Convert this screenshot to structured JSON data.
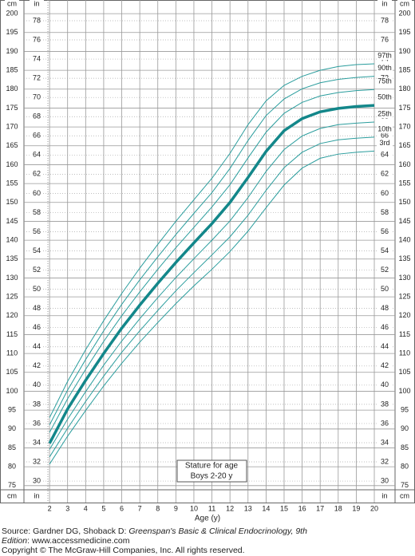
{
  "chart_data": {
    "type": "line",
    "title": "Stature for age",
    "subtitle": "Boys 2-20 y",
    "xlabel": "Age (y)",
    "ylabel": "cm",
    "y2label": "in",
    "x": [
      2,
      3,
      4,
      5,
      6,
      7,
      8,
      9,
      10,
      11,
      12,
      13,
      14,
      15,
      16,
      17,
      18,
      19,
      20
    ],
    "series": [
      {
        "name": "3rd",
        "color": "#2a9d9d",
        "values": [
          80.7,
          88.1,
          94.9,
          101.4,
          107.4,
          113.0,
          118.2,
          123.2,
          127.9,
          132.3,
          137.0,
          142.4,
          148.6,
          154.6,
          159.1,
          161.7,
          162.8,
          163.3,
          163.6
        ]
      },
      {
        "name": "10th",
        "color": "#2a9d9d",
        "values": [
          82.6,
          90.2,
          97.3,
          104.0,
          110.3,
          116.0,
          121.4,
          126.6,
          131.4,
          136.1,
          140.9,
          146.6,
          153.2,
          159.2,
          163.3,
          165.6,
          166.6,
          167.0,
          167.3
        ]
      },
      {
        "name": "25th",
        "color": "#2a9d9d",
        "values": [
          84.6,
          92.6,
          99.9,
          106.9,
          113.3,
          119.2,
          124.8,
          130.1,
          135.1,
          140.0,
          145.1,
          151.3,
          158.2,
          164.0,
          167.6,
          169.6,
          170.6,
          171.0,
          171.3
        ]
      },
      {
        "name": "50th",
        "color": "#13878a",
        "values": [
          86.2,
          95.3,
          102.9,
          110.0,
          116.7,
          122.8,
          128.6,
          134.1,
          139.3,
          144.4,
          150.0,
          156.6,
          163.5,
          169.0,
          172.2,
          174.0,
          174.9,
          175.4,
          175.7
        ]
      },
      {
        "name": "75th",
        "color": "#2a9d9d",
        "values": [
          89.1,
          98.0,
          105.8,
          113.2,
          120.0,
          126.3,
          132.3,
          138.0,
          143.4,
          148.8,
          154.7,
          161.8,
          168.6,
          173.6,
          176.5,
          178.2,
          179.1,
          179.6,
          179.9
        ]
      },
      {
        "name": "90th",
        "color": "#2a9d9d",
        "values": [
          91.1,
          100.3,
          108.4,
          116.0,
          123.0,
          129.5,
          135.6,
          141.5,
          147.1,
          152.6,
          159.0,
          166.4,
          173.0,
          177.4,
          180.1,
          181.7,
          182.6,
          183.1,
          183.4
        ]
      },
      {
        "name": "97th",
        "color": "#2a9d9d",
        "values": [
          93.0,
          102.6,
          111.0,
          118.7,
          125.9,
          132.6,
          138.9,
          145.0,
          150.7,
          156.4,
          163.0,
          170.6,
          176.9,
          181.0,
          183.4,
          185.0,
          186.0,
          186.5,
          186.7
        ]
      }
    ],
    "xlim": [
      0.58,
      21.15
    ],
    "xticks": [
      2,
      3,
      4,
      5,
      6,
      7,
      8,
      9,
      10,
      11,
      12,
      13,
      14,
      15,
      16,
      17,
      18,
      19,
      20
    ],
    "ylim": [
      73.9,
      201.5
    ],
    "yticks": [
      75,
      80,
      85,
      90,
      95,
      100,
      105,
      110,
      115,
      120,
      125,
      130,
      135,
      140,
      145,
      150,
      155,
      160,
      165,
      170,
      175,
      180,
      185,
      190,
      195,
      200
    ],
    "y2lim": [
      29.09,
      79.33
    ],
    "y2ticks": [
      30,
      32,
      34,
      36,
      38,
      40,
      42,
      44,
      46,
      48,
      50,
      52,
      54,
      56,
      58,
      60,
      62,
      64,
      66,
      68,
      70,
      72,
      74,
      76,
      78
    ],
    "grid": true
  },
  "source": {
    "prefix": "Source: Gardner DG, Shoback D: ",
    "title": "Greenspan's Basic & Clinical Endocrinology, 9th Edition",
    "suffix": ": www.accessmedicine.com"
  },
  "copyright": "Copyright © The McGraw-Hill Companies, Inc. All rights reserved."
}
